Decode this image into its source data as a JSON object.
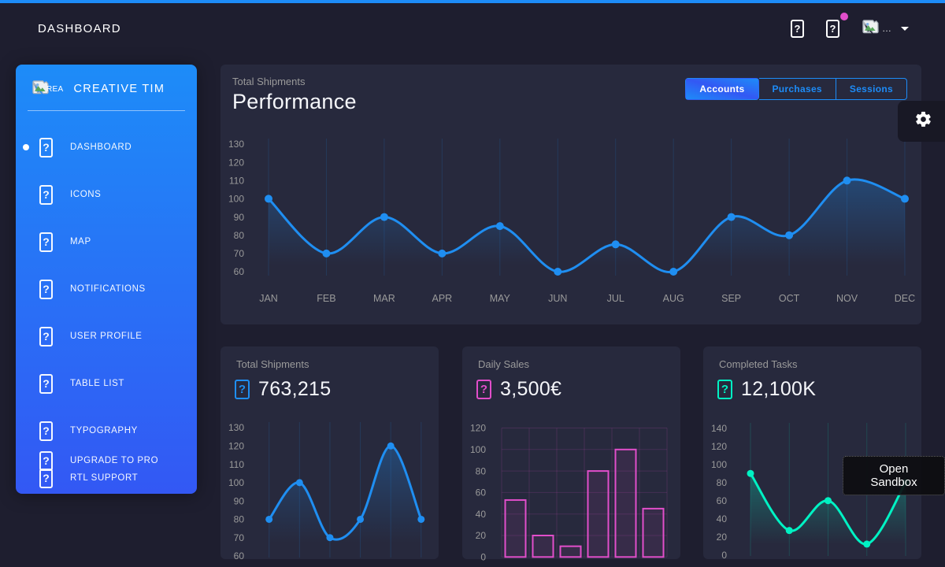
{
  "navbar": {
    "title": "DASHBOARD",
    "missing_glyph": "?",
    "avatar_alt_ellipsis": "…",
    "notification_dot_color": "#e14eca"
  },
  "sidebar": {
    "brand": {
      "logo_alt": "REA",
      "label": "CREATIVE TIM"
    },
    "items": [
      {
        "label": "DASHBOARD",
        "active": true
      },
      {
        "label": "ICONS",
        "active": false
      },
      {
        "label": "MAP",
        "active": false
      },
      {
        "label": "NOTIFICATIONS",
        "active": false
      },
      {
        "label": "USER PROFILE",
        "active": false
      },
      {
        "label": "TABLE LIST",
        "active": false
      },
      {
        "label": "TYPOGRAPHY",
        "active": false
      },
      {
        "label": "UPGRADE TO PRO",
        "active": false
      },
      {
        "label": "RTL SUPPORT",
        "active": false
      }
    ]
  },
  "main_chart": {
    "subtitle": "Total Shipments",
    "title": "Performance",
    "tabs": [
      {
        "label": "Accounts",
        "active": true
      },
      {
        "label": "Purchases",
        "active": false
      },
      {
        "label": "Sessions",
        "active": false
      }
    ]
  },
  "stat_cards": [
    {
      "title": "Total Shipments",
      "value": "763,215",
      "accent": "#1f8ef1",
      "chart_id": "total-shipments"
    },
    {
      "title": "Daily Sales",
      "value": "3,500€",
      "accent": "#e14eca",
      "chart_id": "daily-sales"
    },
    {
      "title": "Completed Tasks",
      "value": "12,100K",
      "accent": "#00f2c3",
      "chart_id": "completed-tasks"
    }
  ],
  "sandbox_button": {
    "label": "Open Sandbox"
  },
  "colors": {
    "background": "#1e1e2f",
    "card": "#27293d",
    "accent_blue": "#1d8cf8",
    "accent_pink": "#e14eca",
    "accent_green": "#00f2c3",
    "text_muted": "#9a9a9a"
  },
  "chart_data": [
    {
      "id": "performance",
      "type": "line",
      "title": "Performance",
      "categories": [
        "JAN",
        "FEB",
        "MAR",
        "APR",
        "MAY",
        "JUN",
        "JUL",
        "AUG",
        "SEP",
        "OCT",
        "NOV",
        "DEC"
      ],
      "values": [
        100,
        70,
        90,
        70,
        85,
        60,
        75,
        60,
        90,
        80,
        110,
        100
      ],
      "color": "#1f8ef1",
      "ylim": [
        60,
        130
      ],
      "y_ticks": [
        130,
        120,
        110,
        100,
        90,
        80,
        70,
        60
      ],
      "grid": "vertical",
      "legend": "none"
    },
    {
      "id": "total-shipments",
      "type": "line",
      "categories": [
        "1",
        "2",
        "3",
        "4",
        "5",
        "6"
      ],
      "values": [
        80,
        100,
        70,
        80,
        120,
        80
      ],
      "color": "#1f8ef1",
      "ylim": [
        60,
        130
      ],
      "y_ticks": [
        130,
        120,
        110,
        100,
        90,
        80,
        70,
        60
      ],
      "grid": "vertical",
      "x_labels_visible": false
    },
    {
      "id": "daily-sales",
      "type": "bar",
      "categories": [
        "1",
        "2",
        "3",
        "4",
        "5",
        "6"
      ],
      "values": [
        53,
        20,
        10,
        80,
        100,
        45
      ],
      "color": "#e14eca",
      "ylim": [
        0,
        120
      ],
      "y_ticks": [
        120,
        100,
        80,
        60,
        40,
        20,
        0
      ],
      "grid": "both",
      "x_labels_visible": false
    },
    {
      "id": "completed-tasks",
      "type": "line",
      "categories": [
        "1",
        "2",
        "3",
        "4",
        "5"
      ],
      "values": [
        90,
        27,
        60,
        12,
        80
      ],
      "color": "#00f2c3",
      "ylim": [
        0,
        140
      ],
      "y_ticks": [
        140,
        120,
        100,
        80,
        60,
        40,
        20,
        0
      ],
      "grid": "vertical",
      "x_labels_visible": false
    }
  ]
}
